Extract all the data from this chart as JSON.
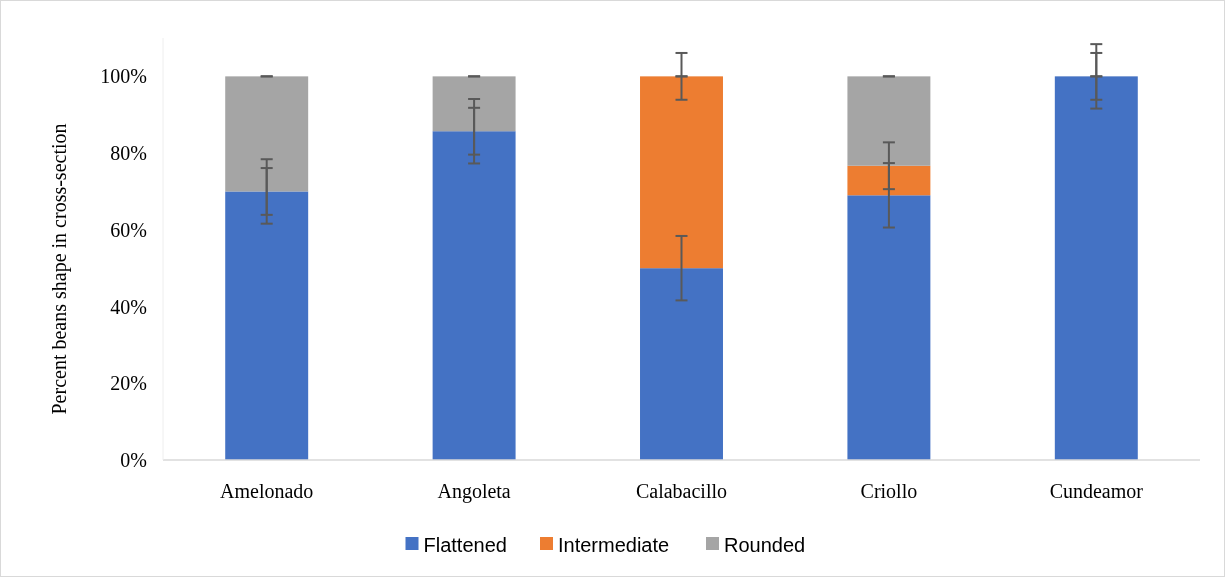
{
  "chart_data": {
    "type": "bar",
    "stacked": true,
    "ylabel": "Percent beans shape in cross-section",
    "categories": [
      "Amelonado",
      "Angoleta",
      "Calabacillo",
      "Criollo",
      "Cundeamor"
    ],
    "series": [
      {
        "name": "Flattened",
        "color": "#4472c4",
        "values": [
          70,
          85.7,
          50,
          69,
          100
        ],
        "errors": [
          8.4,
          8.4,
          8.4,
          8.4,
          8.4
        ]
      },
      {
        "name": "Intermediate",
        "color": "#ed7d31",
        "values": [
          0,
          0,
          50,
          7.7,
          0
        ],
        "errors": [
          6.1,
          6.1,
          6.1,
          6.1,
          6.1
        ]
      },
      {
        "name": "Rounded",
        "color": "#a5a5a5",
        "values": [
          30,
          14.3,
          0,
          23.3,
          0
        ],
        "errors": [
          0,
          0,
          0,
          0,
          0
        ]
      }
    ],
    "ylim": [
      0,
      110
    ],
    "yticks": [
      {
        "value": 0,
        "label": "0%"
      },
      {
        "value": 20,
        "label": "20%"
      },
      {
        "value": 40,
        "label": "40%"
      },
      {
        "value": 60,
        "label": "60%"
      },
      {
        "value": 80,
        "label": "80%"
      },
      {
        "value": 100,
        "label": "100%"
      }
    ],
    "grid": false,
    "legend": "bottom"
  }
}
